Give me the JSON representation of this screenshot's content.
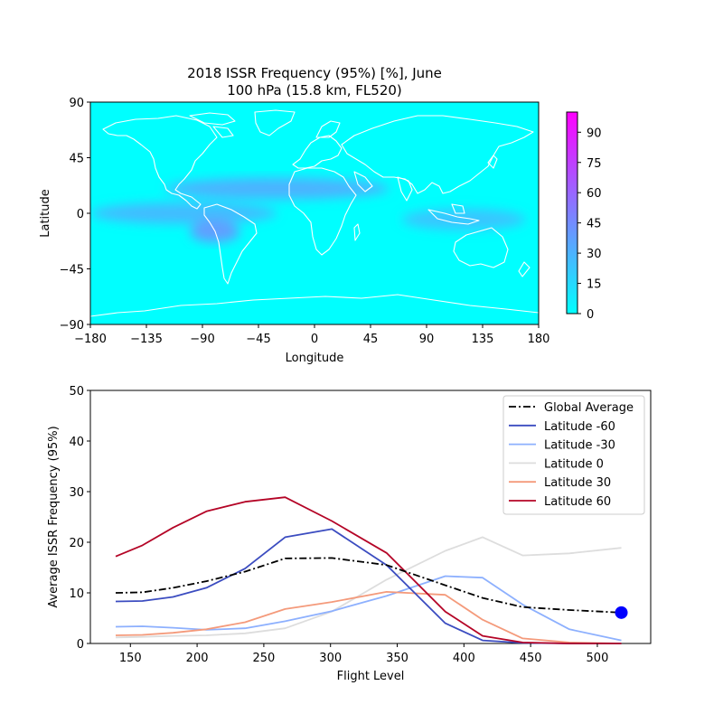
{
  "map": {
    "title_line1": "2018 ISSR Frequency (95%) [%], June",
    "title_line2": "100 hPa (15.8 km, FL520)",
    "xlabel": "Longitude",
    "ylabel": "Latitude",
    "xticks": [
      -180,
      -135,
      -90,
      -45,
      0,
      45,
      90,
      135,
      180
    ],
    "yticks": [
      -90,
      -45,
      0,
      45,
      90
    ],
    "xlim": [
      -180,
      180
    ],
    "ylim": [
      -90,
      90
    ],
    "colormap": [
      "#00ffff",
      "#ff00ff"
    ],
    "coastline_color": "#ffffff",
    "colorbar": {
      "range": [
        0,
        100
      ],
      "ticks": [
        0,
        15,
        30,
        45,
        60,
        75,
        90
      ]
    },
    "bands": [
      {
        "lat": 20,
        "lon_range": [
          -120,
          60
        ],
        "value": 40
      },
      {
        "lat": 0,
        "lon_range": [
          -180,
          -30
        ],
        "value": 35
      },
      {
        "lat": -15,
        "lon_range": [
          -100,
          -60
        ],
        "value": 50
      },
      {
        "lat": -5,
        "lon_range": [
          70,
          170
        ],
        "value": 30
      }
    ]
  },
  "chart_data": {
    "type": "line",
    "xlabel": "Flight Level",
    "ylabel": "Average ISSR Frequency (95%)",
    "xlim": [
      120,
      540
    ],
    "ylim": [
      0,
      50
    ],
    "xticks": [
      150,
      200,
      250,
      300,
      350,
      400,
      450,
      500
    ],
    "yticks": [
      0,
      10,
      20,
      30,
      40,
      50
    ],
    "legend_position": "top-right",
    "grid": false,
    "x": [
      139,
      159,
      182,
      207,
      236,
      266,
      301,
      342,
      386,
      414,
      444,
      479,
      518
    ],
    "series": [
      {
        "name": "Global Average",
        "color": "#000000",
        "dash": "dashdot",
        "values": [
          10.0,
          10.1,
          11.0,
          12.3,
          14.2,
          16.8,
          16.9,
          15.5,
          11.5,
          9.0,
          7.2,
          6.6,
          6.1
        ]
      },
      {
        "name": "Latitude -60",
        "color": "#3b4cc0",
        "dash": "solid",
        "values": [
          8.3,
          8.4,
          9.2,
          11.0,
          14.8,
          21.0,
          22.6,
          15.5,
          4.0,
          0.6,
          0.1,
          0.0,
          0.0
        ]
      },
      {
        "name": "Latitude -30",
        "color": "#8db0fe",
        "dash": "solid",
        "values": [
          3.3,
          3.4,
          3.1,
          2.7,
          3.0,
          4.4,
          6.4,
          9.4,
          13.3,
          13.0,
          7.7,
          2.8,
          0.6
        ]
      },
      {
        "name": "Latitude 0",
        "color": "#dddddd",
        "dash": "solid",
        "values": [
          1.2,
          1.3,
          1.5,
          1.6,
          2.0,
          3.0,
          6.3,
          12.6,
          18.3,
          21.0,
          17.4,
          17.8,
          18.9
        ]
      },
      {
        "name": "Latitude 30",
        "color": "#f49a7b",
        "dash": "solid",
        "values": [
          1.6,
          1.7,
          2.1,
          2.8,
          4.2,
          6.8,
          8.2,
          10.2,
          9.6,
          4.7,
          1.0,
          0.2,
          0.0
        ]
      },
      {
        "name": "Latitude 60",
        "color": "#b40426",
        "dash": "solid",
        "values": [
          17.2,
          19.4,
          22.9,
          26.1,
          28.0,
          28.9,
          24.2,
          17.9,
          6.3,
          1.5,
          0.2,
          0.0,
          0.0
        ]
      }
    ],
    "marker": {
      "x": 518,
      "y": 6.1,
      "color": "#0000ff"
    }
  }
}
